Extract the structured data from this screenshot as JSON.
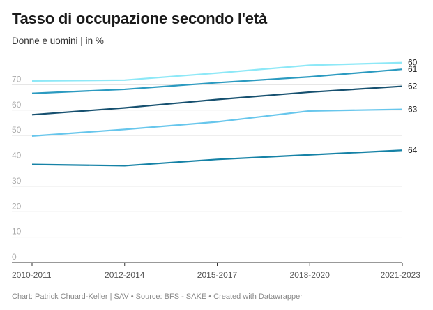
{
  "title": "Tasso di occupazione secondo l'età",
  "subtitle": "Donne e uomini | in %",
  "footer": "Chart: Patrick Chuard-Keller | SAV • Source: BFS - SAKE • Created with Datawrapper",
  "colors": {
    "grid": "#e3e3e3",
    "axis": "#333333",
    "tick": "#aaaaaa"
  },
  "chart_data": {
    "type": "line",
    "title": "Tasso di occupazione secondo l'età",
    "subtitle": "Donne e uomini | in %",
    "categories": [
      "2010-2011",
      "2012-2014",
      "2015-2017",
      "2018-2020",
      "2021-2023"
    ],
    "ylim": [
      0,
      80
    ],
    "yticks": [
      0,
      10,
      20,
      30,
      40,
      50,
      60,
      70
    ],
    "grid": true,
    "series": [
      {
        "name": "60",
        "color": "#8de8f7",
        "values": [
          71.5,
          71.8,
          74.6,
          77.7,
          78.7
        ]
      },
      {
        "name": "61",
        "color": "#2b9ac0",
        "values": [
          66.6,
          68.2,
          70.8,
          73.1,
          76.1
        ]
      },
      {
        "name": "62",
        "color": "#16506f",
        "values": [
          58.2,
          60.9,
          64.2,
          67.1,
          69.4
        ]
      },
      {
        "name": "63",
        "color": "#67c6ec",
        "values": [
          49.8,
          52.4,
          55.4,
          59.7,
          60.3
        ]
      },
      {
        "name": "64",
        "color": "#1682a6",
        "values": [
          38.6,
          38.1,
          40.6,
          42.4,
          44.2
        ]
      }
    ]
  }
}
